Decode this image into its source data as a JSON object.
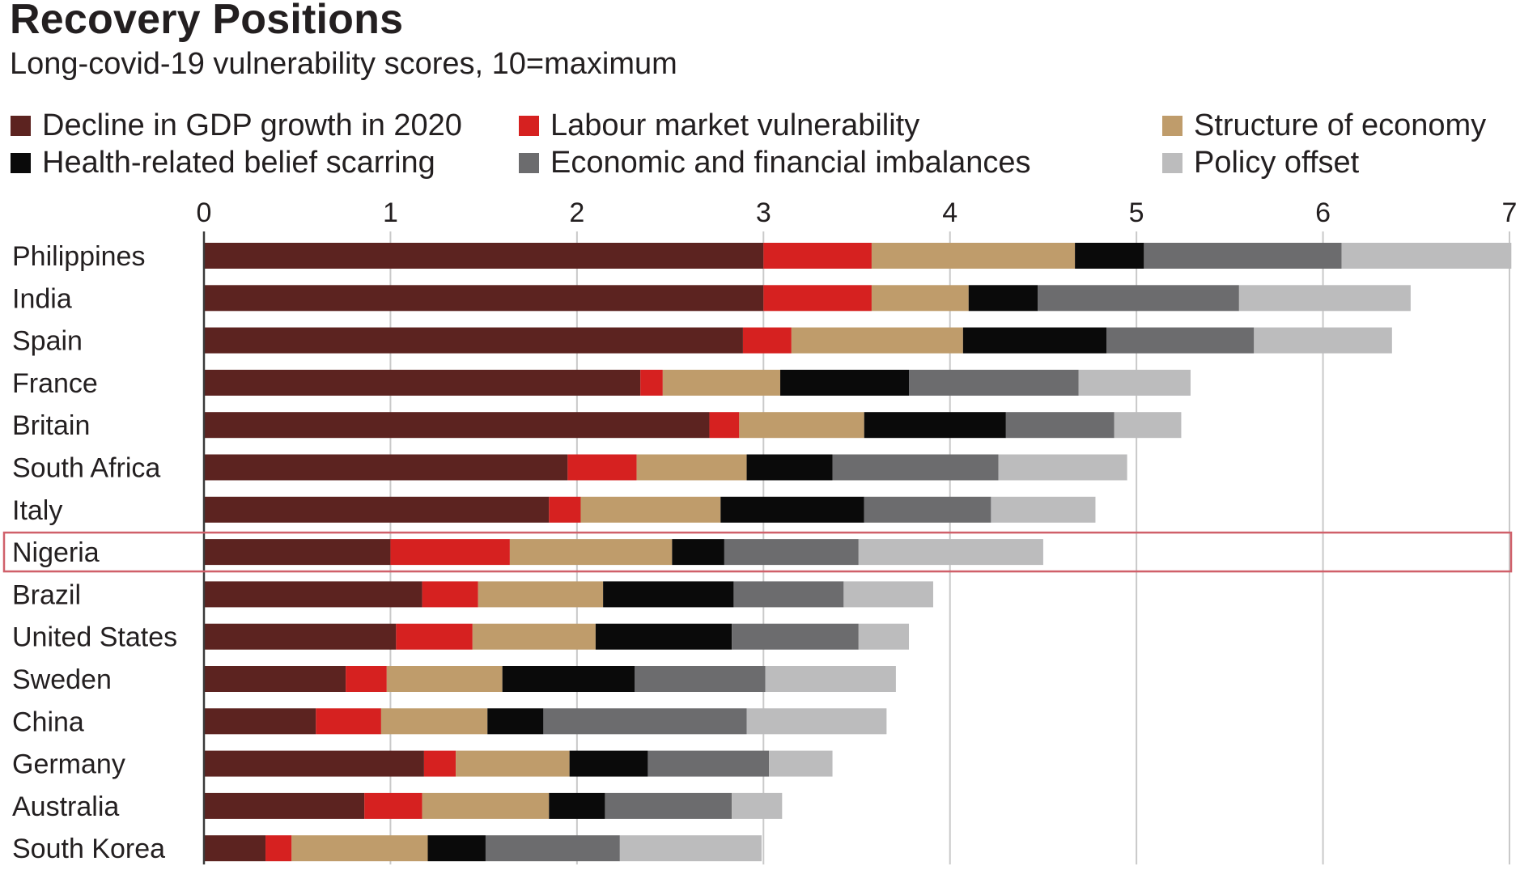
{
  "chart_data": {
    "type": "bar",
    "orientation": "horizontal",
    "stacked": true,
    "title": "Recovery Positions",
    "subtitle": "Long-covid-19 vulnerability scores, 10=maximum",
    "xlabel": "",
    "ylabel": "",
    "xlim": [
      0,
      7
    ],
    "xticks": [
      "0",
      "1",
      "2",
      "3",
      "4",
      "5",
      "6",
      "7"
    ],
    "grid": true,
    "legend_position": "top",
    "highlighted_category": "Nigeria",
    "categories": [
      "Philippines",
      "India",
      "Spain",
      "France",
      "Britain",
      "South Africa",
      "Italy",
      "Nigeria",
      "Brazil",
      "United States",
      "Sweden",
      "China",
      "Germany",
      "Australia",
      "South Korea"
    ],
    "series": [
      {
        "name": "Decline in GDP growth in 2020",
        "color": "#5c2320",
        "values": [
          3.0,
          3.0,
          2.89,
          2.34,
          2.71,
          1.95,
          1.85,
          1.0,
          1.17,
          1.03,
          0.76,
          0.6,
          1.18,
          0.86,
          0.33
        ]
      },
      {
        "name": "Labour market vulnerability",
        "color": "#d62120",
        "values": [
          0.58,
          0.58,
          0.26,
          0.12,
          0.16,
          0.37,
          0.17,
          0.64,
          0.3,
          0.41,
          0.22,
          0.35,
          0.17,
          0.31,
          0.14
        ]
      },
      {
        "name": "Structure of economy",
        "color": "#bf9c6b",
        "values": [
          1.09,
          0.52,
          0.92,
          0.63,
          0.67,
          0.59,
          0.75,
          0.87,
          0.67,
          0.66,
          0.62,
          0.57,
          0.61,
          0.68,
          0.73
        ]
      },
      {
        "name": "Health-related belief scarring",
        "color": "#0a0a0a",
        "values": [
          0.37,
          0.37,
          0.77,
          0.69,
          0.76,
          0.46,
          0.77,
          0.28,
          0.7,
          0.73,
          0.71,
          0.3,
          0.42,
          0.3,
          0.31
        ]
      },
      {
        "name": "Economic and financial imbalances",
        "color": "#6c6c6e",
        "values": [
          1.06,
          1.08,
          0.79,
          0.91,
          0.58,
          0.89,
          0.68,
          0.72,
          0.59,
          0.68,
          0.7,
          1.09,
          0.65,
          0.68,
          0.72
        ]
      },
      {
        "name": "Policy offset",
        "color": "#bcbcbd",
        "values": [
          0.91,
          0.92,
          0.74,
          0.6,
          0.36,
          0.69,
          0.56,
          0.99,
          0.48,
          0.27,
          0.7,
          0.75,
          0.34,
          0.27,
          0.76
        ]
      }
    ]
  },
  "legend_layout": [
    [
      "Decline in GDP growth in 2020",
      "Labour market vulnerability",
      "Structure of economy"
    ],
    [
      "Health-related belief scarring",
      "Economic and financial imbalances",
      "Policy offset"
    ]
  ],
  "colors": {
    "text": "#231f20",
    "gridline": "#c9c9c9",
    "axis": "#3a3a3a",
    "highlight_box": "#d0606a"
  }
}
